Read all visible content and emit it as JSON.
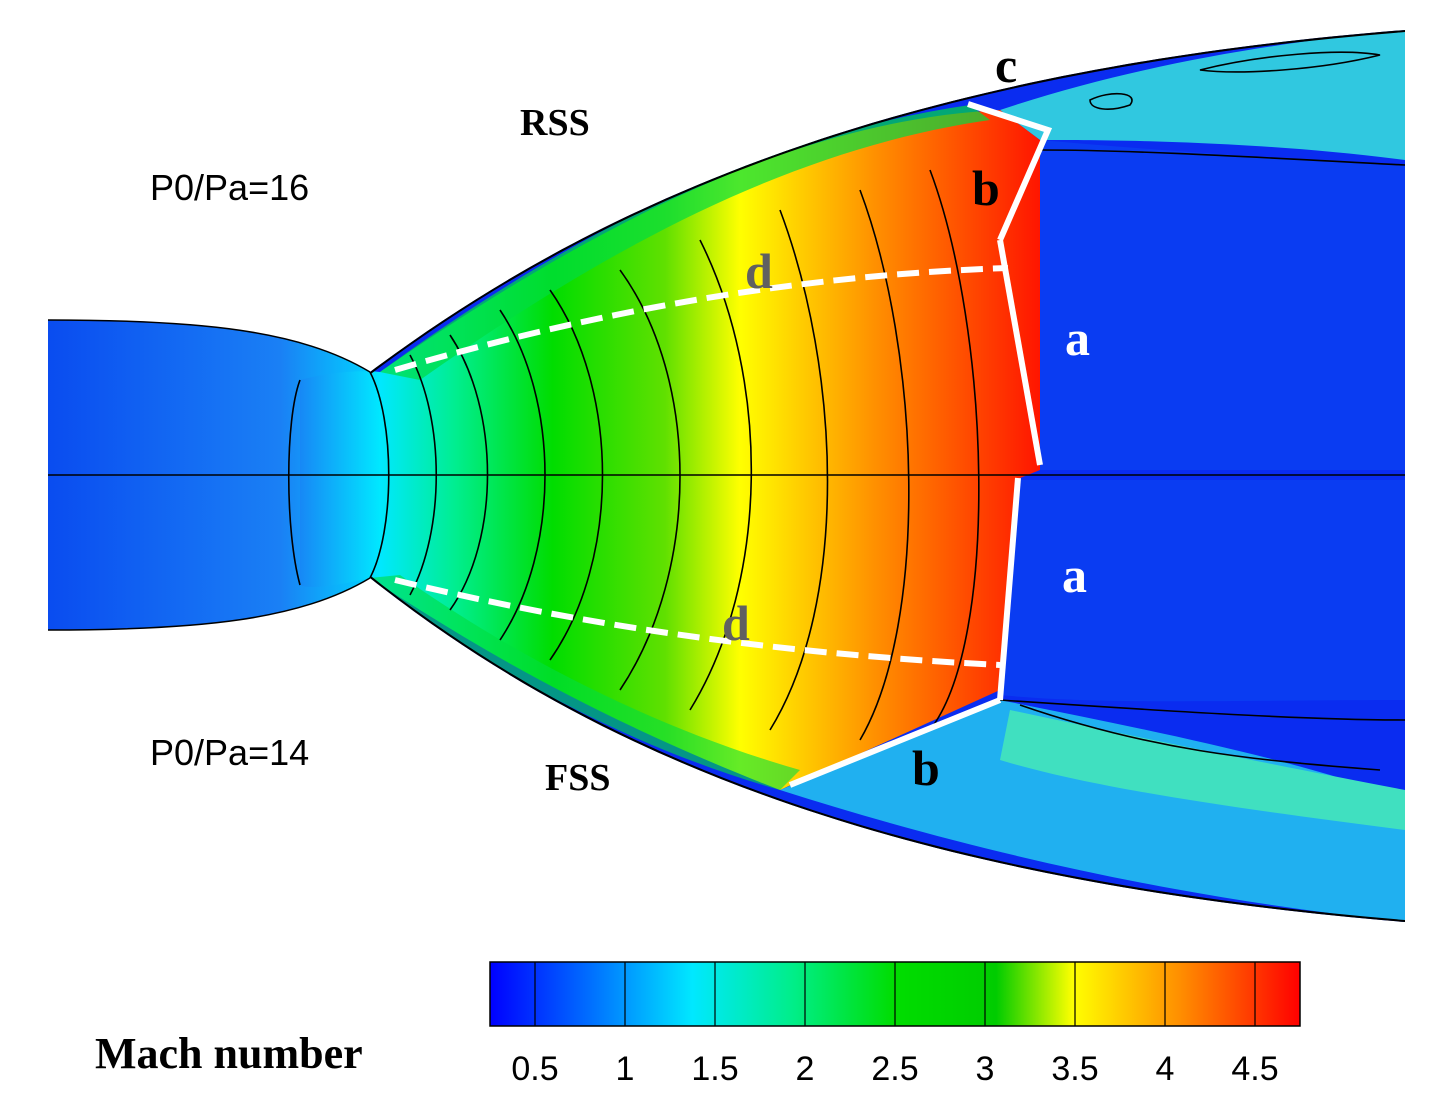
{
  "figure": {
    "upper_half_label": "P0/Pa=16",
    "lower_half_label": "P0/Pa=14",
    "upper_separation_label": "RSS",
    "lower_separation_label": "FSS",
    "colors": {
      "low_mach": "#0a2cf0",
      "mid_mach": "#00dd00",
      "high_mach": "#ff1a00",
      "shock_lines": "#ffffff",
      "contour_lines": "#000000"
    }
  },
  "shock_labels": {
    "upper_a": "a",
    "upper_b": "b",
    "upper_c": "c",
    "upper_d": "d",
    "lower_a": "a",
    "lower_b": "b",
    "lower_d": "d"
  },
  "colorbar": {
    "title": "Mach number",
    "ticks": [
      "0.5",
      "1",
      "1.5",
      "2",
      "2.5",
      "3",
      "3.5",
      "4",
      "4.5"
    ],
    "colors": [
      "#0000ff",
      "#0077ff",
      "#00e5ff",
      "#00ee88",
      "#00dd00",
      "#00cc00",
      "#ffff00",
      "#ff8800",
      "#ff0000"
    ]
  }
}
